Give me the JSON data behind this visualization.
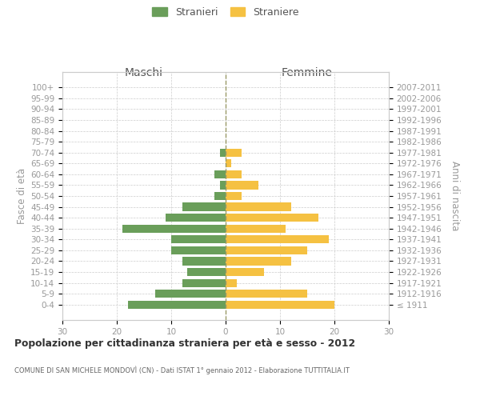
{
  "age_groups": [
    "100+",
    "95-99",
    "90-94",
    "85-89",
    "80-84",
    "75-79",
    "70-74",
    "65-69",
    "60-64",
    "55-59",
    "50-54",
    "45-49",
    "40-44",
    "35-39",
    "30-34",
    "25-29",
    "20-24",
    "15-19",
    "10-14",
    "5-9",
    "0-4"
  ],
  "birth_years": [
    "≤ 1911",
    "1912-1916",
    "1917-1921",
    "1922-1926",
    "1927-1931",
    "1932-1936",
    "1937-1941",
    "1942-1946",
    "1947-1951",
    "1952-1956",
    "1957-1961",
    "1962-1966",
    "1967-1971",
    "1972-1976",
    "1977-1981",
    "1982-1986",
    "1987-1991",
    "1992-1996",
    "1997-2001",
    "2002-2006",
    "2007-2011"
  ],
  "males": [
    0,
    0,
    0,
    0,
    0,
    0,
    1,
    0,
    2,
    1,
    2,
    8,
    11,
    19,
    10,
    10,
    8,
    7,
    8,
    13,
    18
  ],
  "females": [
    0,
    0,
    0,
    0,
    0,
    0,
    3,
    1,
    3,
    6,
    3,
    12,
    17,
    11,
    19,
    15,
    12,
    7,
    2,
    15,
    20
  ],
  "male_color": "#6a9e5a",
  "female_color": "#f5c142",
  "bar_height": 0.75,
  "xlim": 30,
  "title": "Popolazione per cittadinanza straniera per età e sesso - 2012",
  "subtitle": "COMUNE DI SAN MICHELE MONDOVÌ (CN) - Dati ISTAT 1° gennaio 2012 - Elaborazione TUTTITALIA.IT",
  "ylabel_left": "Fasce di età",
  "ylabel_right": "Anni di nascita",
  "xlabel_left": "Maschi",
  "xlabel_right": "Femmine",
  "legend_male": "Stranieri",
  "legend_female": "Straniere",
  "background_color": "#ffffff",
  "grid_color": "#cccccc",
  "tick_color": "#999999",
  "spine_color": "#cccccc",
  "dashed_line_color": "#999966"
}
